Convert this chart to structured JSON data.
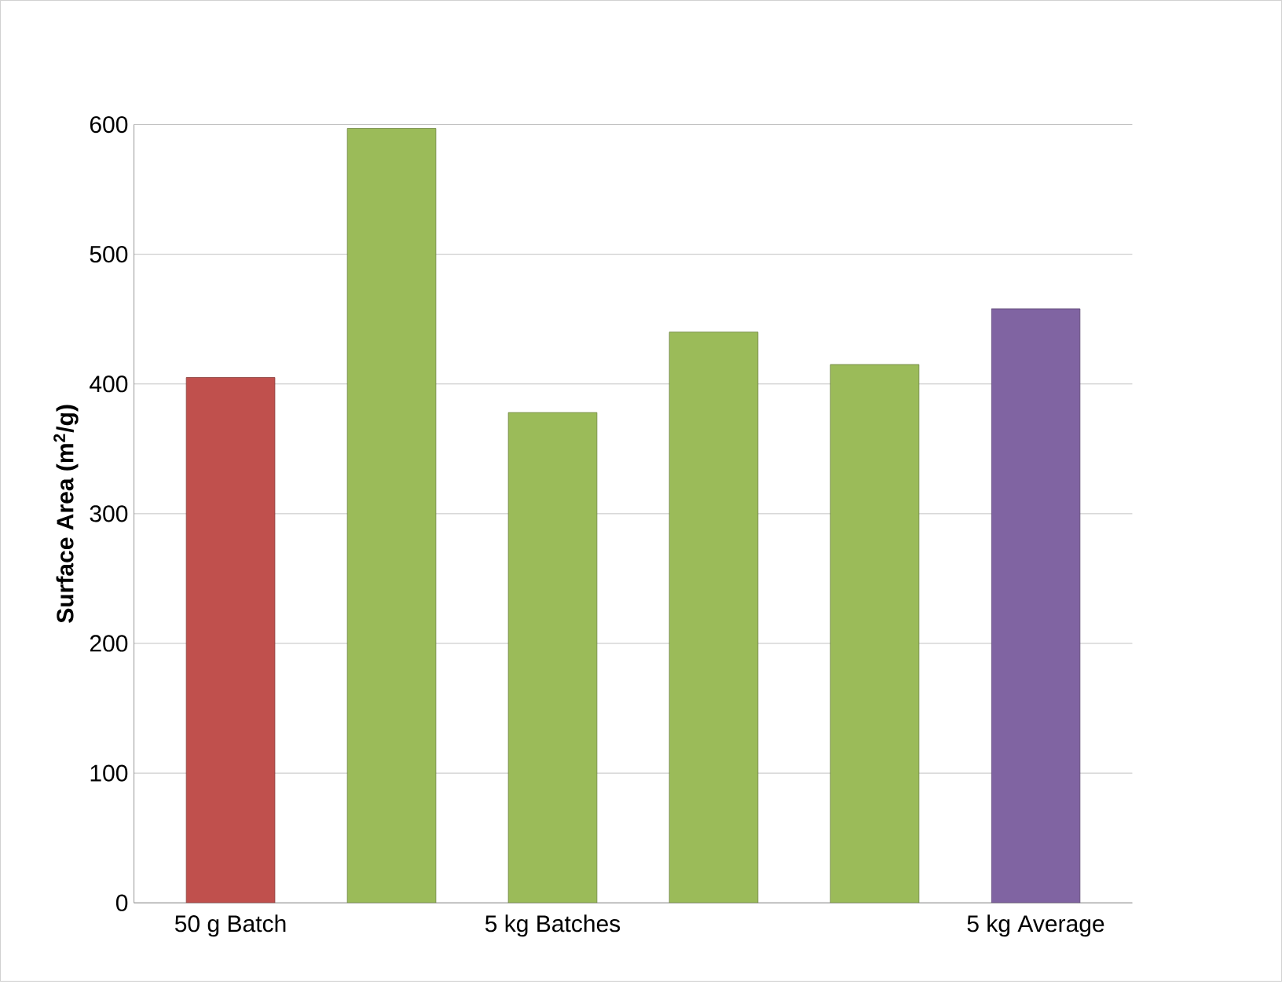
{
  "chart_data": {
    "type": "bar",
    "ylabel": "Surface Area (m$^{2}$/g)",
    "categories": [
      "50 g Batch",
      null,
      "5 kg Batches",
      null,
      null,
      "5 kg Average"
    ],
    "values": [
      405,
      597,
      378,
      440,
      415,
      458
    ],
    "colors": [
      "#c0504d",
      "#9bbb59",
      "#9bbb59",
      "#9bbb59",
      "#9bbb59",
      "#8064a2"
    ],
    "ylim": [
      0,
      600
    ],
    "yticks": [
      0,
      100,
      200,
      300,
      400,
      500,
      600
    ],
    "grid": "y"
  }
}
